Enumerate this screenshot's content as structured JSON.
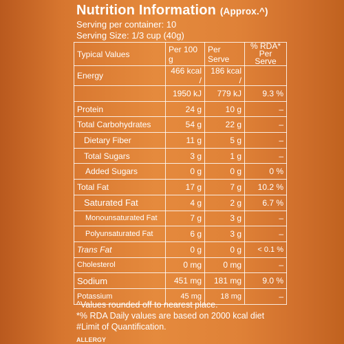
{
  "header": {
    "title": "Nutrition Information",
    "approx": "(Approx.^)",
    "servings_per_container": "Serving per container: 10",
    "serving_size": "Serving Size: 1/3 cup (40g)"
  },
  "table": {
    "headers": {
      "typical": "Typical Values",
      "per100": "Per 100 g",
      "perserve": "Per Serve",
      "rda_line1": "% RDA*",
      "rda_line2": "Per Serve"
    },
    "rows": [
      {
        "name": "Energy",
        "per100": "466 kcal /",
        "perserve": "186 kcal /",
        "rda": ""
      },
      {
        "name": "",
        "per100": "1950 kJ",
        "perserve": "779 kJ",
        "rda": "9.3 %"
      },
      {
        "name": "Protein",
        "per100": "24 g",
        "perserve": "10 g",
        "rda": "–"
      },
      {
        "name": "Total Carbohydrates",
        "per100": "54 g",
        "perserve": "22 g",
        "rda": "–"
      },
      {
        "name": "Dietary Fiber",
        "per100": "11 g",
        "perserve": "5 g",
        "rda": "–"
      },
      {
        "name": "Total Sugars",
        "per100": "3 g",
        "perserve": "1 g",
        "rda": "–"
      },
      {
        "name": "Added Sugars",
        "per100": "0 g",
        "perserve": "0 g",
        "rda": "0 %"
      },
      {
        "name": "Total Fat",
        "per100": "17 g",
        "perserve": "7 g",
        "rda": "10.2 %"
      },
      {
        "name": "Saturated Fat",
        "per100": "4 g",
        "perserve": "2 g",
        "rda": "6.7 %"
      },
      {
        "name": "Monounsaturated Fat",
        "per100": "7 g",
        "perserve": "3 g",
        "rda": "–"
      },
      {
        "name": "Polyunsaturated Fat",
        "per100": "6 g",
        "perserve": "3 g",
        "rda": "–"
      },
      {
        "name": "Trans Fat",
        "per100": "0 g",
        "perserve": "0 g",
        "rda": "< 0.1 %"
      },
      {
        "name": "Cholesterol",
        "per100": "0 mg",
        "perserve": "0 mg",
        "rda": "–"
      },
      {
        "name": "Sodium",
        "per100": "451 mg",
        "perserve": "181 mg",
        "rda": "9.0 %"
      },
      {
        "name": "Potassium",
        "per100": "45 mg",
        "perserve": "18 mg",
        "rda": "–"
      }
    ]
  },
  "footnotes": {
    "line1": "^Values rounded off to nearest place.",
    "line2": "*% RDA Daily values are based on 2000 kcal diet",
    "line3": "#Limit of Quantification."
  },
  "bottom_text": "ALLERGY"
}
